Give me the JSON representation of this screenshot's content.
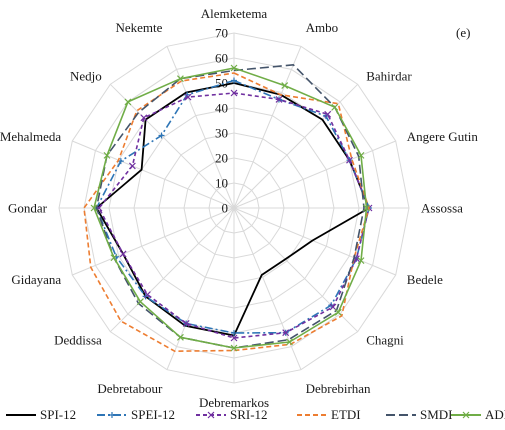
{
  "chart_data": {
    "type": "radar",
    "panel_label": "(e)",
    "rmax": 70,
    "ticks": [
      0,
      10,
      20,
      30,
      40,
      50,
      60,
      70
    ],
    "grid": true,
    "legend_position": "bottom",
    "categories": [
      "Alemketema",
      "Ambo",
      "Bahirdar",
      "Angere Gutin",
      "Assossa",
      "Bedele",
      "Chagni",
      "Debrebirhan",
      "Debremarkos",
      "Debretabour",
      "Deddissa",
      "Gidayana",
      "Gondar",
      "Mehalmeda",
      "Nedjo",
      "Nekemte"
    ],
    "series": [
      {
        "name": "SPI-12",
        "color": "#000000",
        "dash": "",
        "marker": "none",
        "values": [
          50,
          49,
          50,
          50,
          54,
          34,
          29,
          29,
          51,
          51,
          50,
          48,
          55,
          40,
          50,
          50
        ]
      },
      {
        "name": "SPEI-12",
        "color": "#2e75b6",
        "dash": "8 3 2 3",
        "marker": "plus",
        "values": [
          51,
          47,
          52,
          50,
          54,
          53,
          55,
          54,
          50,
          50,
          50,
          51,
          55,
          49,
          41,
          49
        ]
      },
      {
        "name": "SRI-12",
        "color": "#7030a0",
        "dash": "4 3",
        "marker": "x",
        "values": [
          46,
          47,
          53,
          50,
          54,
          53,
          56,
          54,
          52,
          50,
          49,
          48,
          54,
          44,
          51,
          48
        ]
      },
      {
        "name": "ETDI",
        "color": "#ed7d31",
        "dash": "5 3",
        "marker": "none",
        "values": [
          54,
          49,
          59,
          51,
          54,
          52,
          61,
          59,
          57,
          62,
          64,
          62,
          60,
          50,
          55,
          55
        ]
      },
      {
        "name": "SMDI",
        "color": "#44546a",
        "dash": "9 4",
        "marker": "none",
        "values": [
          55,
          62,
          57,
          54,
          52,
          52,
          58,
          57,
          56,
          56,
          54,
          52,
          55,
          55,
          54,
          56
        ]
      },
      {
        "name": "ADI",
        "color": "#70ad47",
        "dash": "",
        "marker": "x",
        "values": [
          56,
          53,
          57,
          55,
          53,
          55,
          59,
          58,
          56,
          56,
          53,
          52,
          56,
          55,
          60,
          56
        ]
      }
    ]
  }
}
